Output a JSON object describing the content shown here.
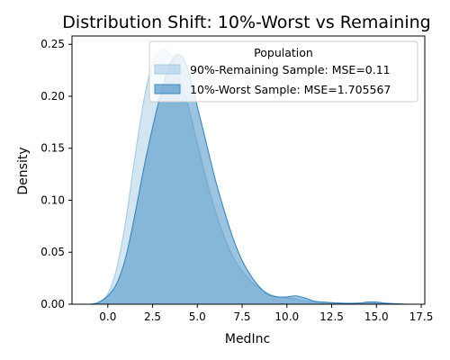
{
  "chart_data": {
    "type": "area",
    "title": "Distribution Shift: 10%-Worst vs Remaining",
    "xlabel": "MedInc",
    "ylabel": "Density",
    "xlim": [
      -2.0,
      17.7
    ],
    "ylim": [
      0,
      0.258
    ],
    "x_ticks": [
      0.0,
      2.5,
      5.0,
      7.5,
      10.0,
      12.5,
      15.0,
      17.5
    ],
    "x_tick_labels": [
      "0.0",
      "2.5",
      "5.0",
      "7.5",
      "10.0",
      "12.5",
      "15.0",
      "17.5"
    ],
    "y_ticks": [
      0.0,
      0.05,
      0.1,
      0.15,
      0.2,
      0.25
    ],
    "y_tick_labels": [
      "0.00",
      "0.05",
      "0.10",
      "0.15",
      "0.20",
      "0.25"
    ],
    "grid": false,
    "legend": {
      "title": "Population",
      "placement": "top-right"
    },
    "series": [
      {
        "name": "90%-Remaining Sample: MSE=0.11",
        "color": "#a6cce4",
        "x": [
          -0.6,
          0.0,
          0.5,
          1.0,
          1.5,
          2.0,
          2.5,
          3.0,
          3.5,
          4.0,
          4.5,
          5.0,
          5.5,
          6.0,
          6.5,
          7.0,
          7.5,
          8.0,
          8.5,
          9.0,
          9.5,
          10.0,
          10.5,
          11.0,
          12.0,
          13.0,
          14.0,
          15.0,
          16.0,
          16.5
        ],
        "y": [
          0.0,
          0.01,
          0.035,
          0.08,
          0.14,
          0.195,
          0.232,
          0.245,
          0.24,
          0.22,
          0.19,
          0.155,
          0.12,
          0.09,
          0.065,
          0.045,
          0.032,
          0.022,
          0.015,
          0.01,
          0.007,
          0.006,
          0.005,
          0.003,
          0.002,
          0.001,
          0.001,
          0.001,
          0.0005,
          0.0
        ]
      },
      {
        "name": "10%-Worst Sample: MSE=1.705567",
        "color": "#3a87bf",
        "x": [
          -0.9,
          -0.5,
          0.0,
          0.5,
          1.0,
          1.5,
          2.0,
          2.5,
          3.0,
          3.5,
          4.0,
          4.5,
          5.0,
          5.5,
          6.0,
          6.5,
          7.0,
          7.5,
          8.0,
          8.5,
          9.0,
          9.5,
          10.0,
          10.5,
          11.0,
          11.5,
          12.0,
          13.0,
          14.0,
          14.5,
          15.0,
          15.5,
          16.0,
          16.7
        ],
        "y": [
          0.0,
          0.002,
          0.008,
          0.02,
          0.045,
          0.085,
          0.13,
          0.17,
          0.205,
          0.232,
          0.24,
          0.225,
          0.19,
          0.155,
          0.12,
          0.09,
          0.063,
          0.042,
          0.027,
          0.016,
          0.009,
          0.007,
          0.007,
          0.008,
          0.006,
          0.003,
          0.002,
          0.001,
          0.001,
          0.002,
          0.002,
          0.001,
          0.0005,
          0.0
        ]
      }
    ]
  }
}
